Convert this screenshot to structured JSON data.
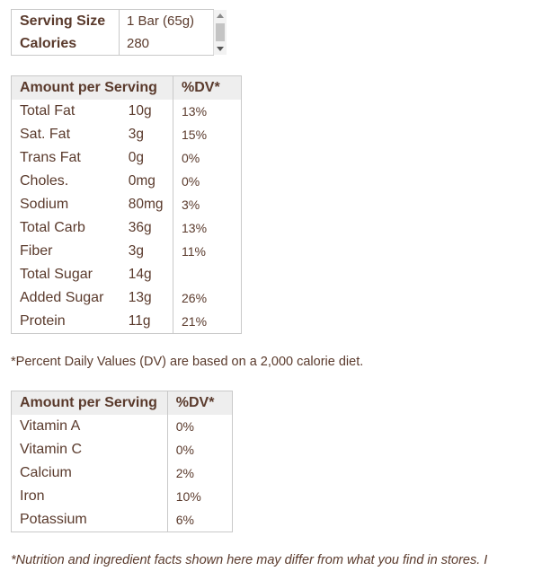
{
  "serving": {
    "rows": [
      {
        "label": "Serving Size",
        "value": "1 Bar (65g)"
      },
      {
        "label": "Calories",
        "value": "280"
      }
    ]
  },
  "macros": {
    "header": {
      "amount": "Amount per Serving",
      "dv": "%DV*"
    },
    "rows": [
      {
        "name": "Total Fat",
        "amount": "10g",
        "dv": "13%"
      },
      {
        "name": "Sat. Fat",
        "amount": "3g",
        "dv": "15%"
      },
      {
        "name": "Trans Fat",
        "amount": "0g",
        "dv": "0%"
      },
      {
        "name": "Choles.",
        "amount": "0mg",
        "dv": "0%"
      },
      {
        "name": "Sodium",
        "amount": "80mg",
        "dv": "3%"
      },
      {
        "name": "Total Carb",
        "amount": "36g",
        "dv": "13%"
      },
      {
        "name": "Fiber",
        "amount": "3g",
        "dv": "11%"
      },
      {
        "name": "Total Sugar",
        "amount": "14g",
        "dv": ""
      },
      {
        "name": "Added Sugar",
        "amount": "13g",
        "dv": "26%"
      },
      {
        "name": "Protein",
        "amount": "11g",
        "dv": "21%"
      }
    ]
  },
  "disclaimer": "*Percent Daily Values (DV) are based on a 2,000 calorie diet.",
  "vitamins": {
    "header": {
      "amount": "Amount per Serving",
      "dv": "%DV*"
    },
    "rows": [
      {
        "name": "Vitamin A",
        "dv": "0%"
      },
      {
        "name": "Vitamin C",
        "dv": "0%"
      },
      {
        "name": "Calcium",
        "dv": "2%"
      },
      {
        "name": "Iron",
        "dv": "10%"
      },
      {
        "name": "Potassium",
        "dv": "6%"
      }
    ]
  },
  "footnote": "*Nutrition and ingredient facts shown here may differ from what you find in stores. I"
}
